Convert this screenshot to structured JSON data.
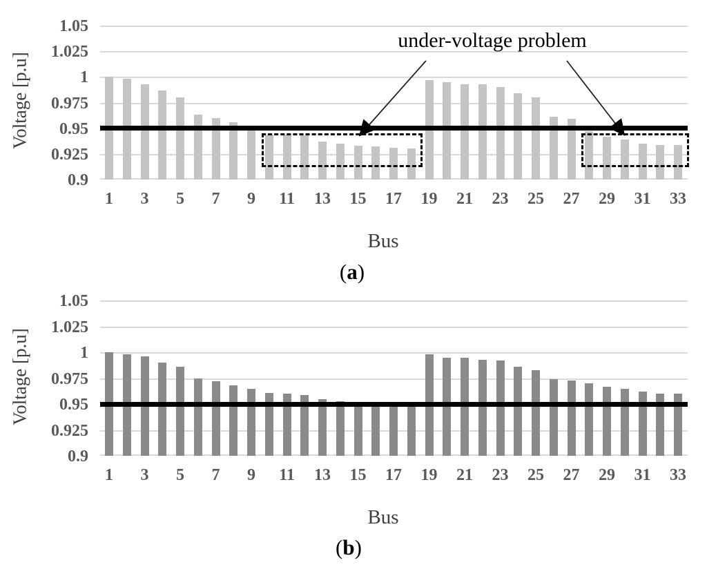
{
  "figure": {
    "panel_a": {
      "open": "(",
      "bold": "a",
      "close": ")"
    },
    "panel_b": {
      "open": "(",
      "bold": "b",
      "close": ")"
    }
  },
  "chart_data": [
    {
      "type": "bar",
      "panel": "a",
      "xlabel": "Bus",
      "ylabel": "Voltage [p.u]",
      "ylim": [
        0.9,
        1.05
      ],
      "grid": true,
      "bar_color": "#c4c4c4",
      "yticks": [
        {
          "v": 1.05,
          "label": "1.05"
        },
        {
          "v": 1.025,
          "label": "1.025"
        },
        {
          "v": 1.0,
          "label": "1"
        },
        {
          "v": 0.975,
          "label": "0.975"
        },
        {
          "v": 0.95,
          "label": "0.95"
        },
        {
          "v": 0.925,
          "label": "0.925"
        },
        {
          "v": 0.9,
          "label": "0.9"
        }
      ],
      "categories": [
        1,
        2,
        3,
        4,
        5,
        6,
        7,
        8,
        9,
        10,
        11,
        12,
        13,
        14,
        15,
        16,
        17,
        18,
        19,
        20,
        21,
        22,
        23,
        24,
        25,
        26,
        27,
        28,
        29,
        30,
        31,
        32,
        33
      ],
      "values": [
        1.0,
        0.998,
        0.993,
        0.987,
        0.98,
        0.963,
        0.96,
        0.956,
        0.948,
        0.944,
        0.944,
        0.943,
        0.937,
        0.935,
        0.933,
        0.932,
        0.931,
        0.93,
        0.997,
        0.995,
        0.993,
        0.993,
        0.99,
        0.984,
        0.98,
        0.961,
        0.959,
        0.947,
        0.942,
        0.939,
        0.935,
        0.934,
        0.934
      ],
      "threshold": {
        "value": 0.95,
        "color": "#000000"
      },
      "annotation": "under-voltage problem",
      "highlight_boxes": [
        {
          "from_bus": 10,
          "to_bus": 18,
          "y_top": 0.945,
          "y_bottom": 0.912
        },
        {
          "from_bus": 28,
          "to_bus": 33,
          "y_top": 0.945,
          "y_bottom": 0.912
        }
      ]
    },
    {
      "type": "bar",
      "panel": "b",
      "xlabel": "Bus",
      "ylabel": "Voltage [p.u]",
      "ylim": [
        0.9,
        1.05
      ],
      "grid": true,
      "bar_color": "#8a8a8a",
      "yticks": [
        {
          "v": 1.05,
          "label": "1.05"
        },
        {
          "v": 1.025,
          "label": "1.025"
        },
        {
          "v": 1.0,
          "label": "1"
        },
        {
          "v": 0.975,
          "label": "0.975"
        },
        {
          "v": 0.95,
          "label": "0.95"
        },
        {
          "v": 0.925,
          "label": "0.925"
        },
        {
          "v": 0.9,
          "label": "0.9"
        }
      ],
      "categories": [
        1,
        2,
        3,
        4,
        5,
        6,
        7,
        8,
        9,
        10,
        11,
        12,
        13,
        14,
        15,
        16,
        17,
        18,
        19,
        20,
        21,
        22,
        23,
        24,
        25,
        26,
        27,
        28,
        29,
        30,
        31,
        32,
        33
      ],
      "values": [
        1.0,
        0.998,
        0.996,
        0.99,
        0.986,
        0.975,
        0.972,
        0.968,
        0.965,
        0.961,
        0.96,
        0.959,
        0.955,
        0.953,
        0.951,
        0.95,
        0.95,
        0.95,
        0.998,
        0.995,
        0.995,
        0.993,
        0.992,
        0.986,
        0.983,
        0.974,
        0.973,
        0.97,
        0.967,
        0.965,
        0.962,
        0.96,
        0.96
      ],
      "threshold": {
        "value": 0.95,
        "color": "#000000"
      },
      "highlight_boxes": []
    }
  ]
}
